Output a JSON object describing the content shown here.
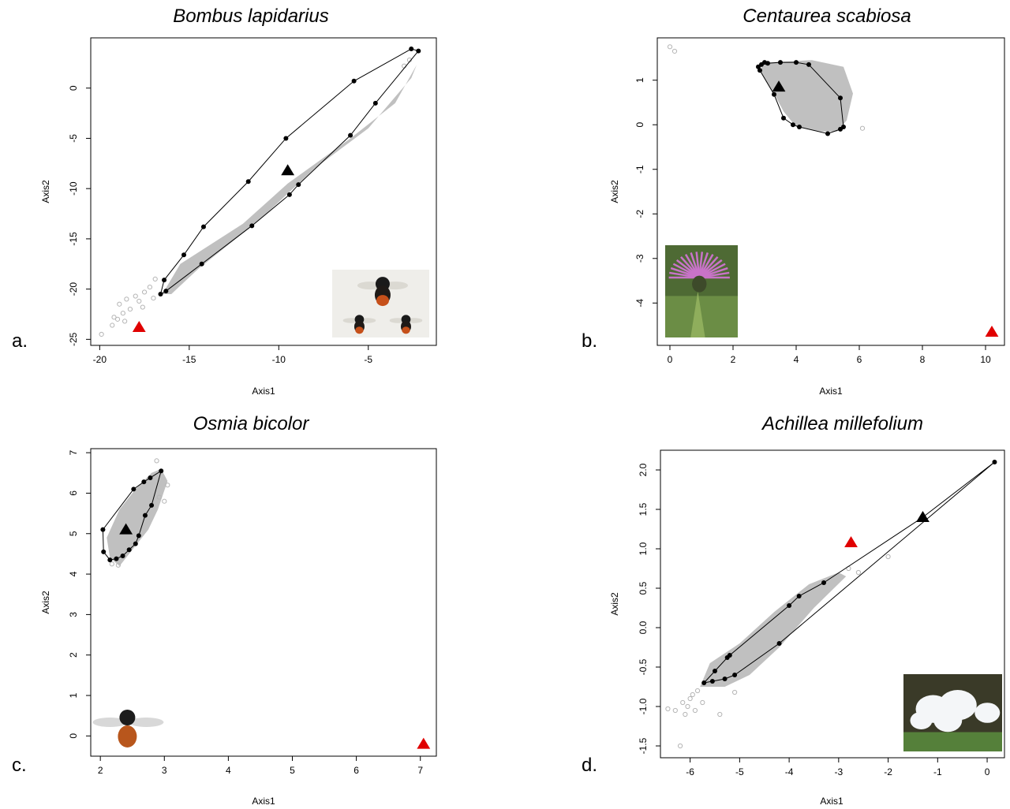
{
  "colors": {
    "cloud": "#c0c0c0",
    "point": "#000000",
    "red_triangle": "#e00000",
    "outlier": "#b5b5b5"
  },
  "chart_data": [
    {
      "type": "scatter",
      "panel": "a.",
      "title": "Bombus lapidarius",
      "xlabel": "Axis1",
      "ylabel": "Axis2",
      "xlim": [
        -20.5,
        -1.2
      ],
      "ylim": [
        -25.6,
        5.0
      ],
      "xticks": [
        -20,
        -15,
        -10,
        -5
      ],
      "yticks": [
        -25,
        -20,
        -15,
        -10,
        -5,
        0
      ],
      "photo": "bumblebee-photo",
      "cloud_polygon": [
        [
          -16.5,
          -20.5
        ],
        [
          -15.5,
          -17.5
        ],
        [
          -12,
          -13.5
        ],
        [
          -9.5,
          -9.5
        ],
        [
          -6,
          -5
        ],
        [
          -3.5,
          -1.5
        ],
        [
          -2.3,
          2.3
        ],
        [
          -2.6,
          1.0
        ],
        [
          -5,
          -4
        ],
        [
          -8,
          -8
        ],
        [
          -11,
          -13
        ],
        [
          -14.5,
          -18
        ],
        [
          -16,
          -20.5
        ]
      ],
      "hull": [
        [
          -16.6,
          -20.5
        ],
        [
          -16.4,
          -19.1
        ],
        [
          -15.3,
          -16.6
        ],
        [
          -14.2,
          -13.8
        ],
        [
          -11.7,
          -9.3
        ],
        [
          -9.6,
          -5.0
        ],
        [
          -5.8,
          0.7
        ],
        [
          -2.6,
          3.9
        ],
        [
          -2.2,
          3.7
        ],
        [
          -4.6,
          -1.5
        ],
        [
          -6.0,
          -4.7
        ],
        [
          -8.9,
          -9.6
        ],
        [
          -9.4,
          -10.6
        ],
        [
          -11.5,
          -13.7
        ],
        [
          -14.3,
          -17.5
        ],
        [
          -16.3,
          -20.2
        ]
      ],
      "centroid": [
        -9.5,
        -8.2
      ],
      "red_marker": [
        -17.8,
        -23.8
      ],
      "outliers": [
        [
          -19.9,
          -24.5
        ],
        [
          -19.3,
          -23.6
        ],
        [
          -19.0,
          -23.0
        ],
        [
          -18.7,
          -22.4
        ],
        [
          -18.9,
          -21.5
        ],
        [
          -18.5,
          -21.0
        ],
        [
          -18.0,
          -20.7
        ],
        [
          -18.3,
          -22.0
        ],
        [
          -17.8,
          -21.2
        ],
        [
          -17.5,
          -20.3
        ],
        [
          -17.2,
          -19.8
        ],
        [
          -16.9,
          -19.0
        ],
        [
          -19.2,
          -22.8
        ],
        [
          -18.6,
          -23.2
        ],
        [
          -17.6,
          -21.8
        ],
        [
          -17.0,
          -20.9
        ],
        [
          -3.0,
          2.2
        ],
        [
          -2.7,
          2.8
        ]
      ]
    },
    {
      "type": "scatter",
      "panel": "b.",
      "title": "Centaurea scabiosa",
      "xlabel": "Axis1",
      "ylabel": "Axis2",
      "xlim": [
        -0.4,
        10.6
      ],
      "ylim": [
        -4.95,
        1.95
      ],
      "xticks": [
        0,
        2,
        4,
        6,
        8,
        10
      ],
      "yticks": [
        -4,
        -3,
        -2,
        -1,
        0,
        1
      ],
      "photo": "knapweed-photo",
      "cloud_polygon": [
        [
          2.9,
          1.3
        ],
        [
          3.1,
          1.4
        ],
        [
          4.5,
          1.45
        ],
        [
          5.5,
          1.3
        ],
        [
          5.8,
          0.7
        ],
        [
          5.6,
          0.1
        ],
        [
          5.3,
          -0.15
        ],
        [
          4.8,
          -0.15
        ],
        [
          4.0,
          -0.05
        ],
        [
          3.6,
          0.3
        ],
        [
          3.3,
          0.7
        ],
        [
          2.9,
          1.15
        ]
      ],
      "hull": [
        [
          2.8,
          1.3
        ],
        [
          2.9,
          1.35
        ],
        [
          3.0,
          1.4
        ],
        [
          3.1,
          1.38
        ],
        [
          3.5,
          1.4
        ],
        [
          4.0,
          1.4
        ],
        [
          4.4,
          1.35
        ],
        [
          5.4,
          0.6
        ],
        [
          5.5,
          -0.05
        ],
        [
          5.4,
          -0.1
        ],
        [
          5.0,
          -0.2
        ],
        [
          4.1,
          -0.05
        ],
        [
          3.9,
          0.0
        ],
        [
          3.6,
          0.15
        ],
        [
          3.3,
          0.68
        ],
        [
          2.85,
          1.22
        ]
      ],
      "centroid": [
        3.45,
        0.85
      ],
      "red_marker": [
        10.2,
        -4.65
      ],
      "outliers": [
        [
          0.0,
          1.75
        ],
        [
          0.15,
          1.65
        ],
        [
          6.1,
          -0.08
        ]
      ]
    },
    {
      "type": "scatter",
      "panel": "c.",
      "title": "Osmia bicolor",
      "xlabel": "Axis1",
      "ylabel": "Axis2",
      "xlim": [
        1.85,
        7.25
      ],
      "ylim": [
        -0.5,
        7.1
      ],
      "xticks": [
        2,
        3,
        4,
        5,
        6,
        7
      ],
      "yticks": [
        0,
        1,
        2,
        3,
        4,
        5,
        6,
        7
      ],
      "photo": "osmia-bee-photo",
      "cloud_polygon": [
        [
          2.15,
          4.4
        ],
        [
          2.1,
          4.9
        ],
        [
          2.3,
          5.6
        ],
        [
          2.55,
          6.1
        ],
        [
          2.8,
          6.5
        ],
        [
          2.95,
          6.6
        ],
        [
          3.05,
          6.3
        ],
        [
          2.9,
          5.6
        ],
        [
          2.75,
          5.1
        ],
        [
          2.5,
          4.6
        ],
        [
          2.3,
          4.2
        ]
      ],
      "hull": [
        [
          2.04,
          5.1
        ],
        [
          2.05,
          4.55
        ],
        [
          2.15,
          4.35
        ],
        [
          2.25,
          4.38
        ],
        [
          2.35,
          4.45
        ],
        [
          2.45,
          4.6
        ],
        [
          2.55,
          4.75
        ],
        [
          2.6,
          4.95
        ],
        [
          2.7,
          5.45
        ],
        [
          2.8,
          5.7
        ],
        [
          2.95,
          6.55
        ],
        [
          2.78,
          6.38
        ],
        [
          2.68,
          6.28
        ],
        [
          2.52,
          6.1
        ]
      ],
      "centroid": [
        2.4,
        5.1
      ],
      "red_marker": [
        7.05,
        -0.2
      ],
      "outliers": [
        [
          2.88,
          6.8
        ],
        [
          3.05,
          6.2
        ],
        [
          3.0,
          5.8
        ],
        [
          2.18,
          4.25
        ],
        [
          2.28,
          4.22
        ],
        [
          2.92,
          5.9
        ]
      ]
    },
    {
      "type": "scatter",
      "panel": "d.",
      "title": "Achillea millefolium",
      "xlabel": "Axis1",
      "ylabel": "Axis2",
      "xlim": [
        -6.6,
        0.35
      ],
      "ylim": [
        -1.65,
        2.25
      ],
      "xticks": [
        -6,
        -5,
        -4,
        -3,
        -2,
        -1,
        0
      ],
      "yticks": [
        -1.5,
        -1.0,
        -0.5,
        0.0,
        0.5,
        1.0,
        1.5,
        2.0
      ],
      "photo": "yarrow-photo",
      "cloud_polygon": [
        [
          -5.8,
          -0.75
        ],
        [
          -5.6,
          -0.45
        ],
        [
          -5.0,
          -0.2
        ],
        [
          -4.3,
          0.2
        ],
        [
          -3.6,
          0.55
        ],
        [
          -3.0,
          0.7
        ],
        [
          -2.85,
          0.65
        ],
        [
          -3.5,
          0.25
        ],
        [
          -4.2,
          -0.25
        ],
        [
          -4.8,
          -0.6
        ],
        [
          -5.3,
          -0.75
        ]
      ],
      "hull": [
        [
          -5.72,
          -0.7
        ],
        [
          -5.5,
          -0.55
        ],
        [
          -5.25,
          -0.38
        ],
        [
          -5.2,
          -0.35
        ],
        [
          -4.0,
          0.28
        ],
        [
          -3.8,
          0.4
        ],
        [
          -3.3,
          0.57
        ],
        [
          -1.3,
          1.4
        ],
        [
          0.15,
          2.1
        ],
        [
          -4.2,
          -0.2
        ],
        [
          -5.1,
          -0.6
        ],
        [
          -5.3,
          -0.65
        ],
        [
          -5.55,
          -0.68
        ]
      ],
      "centroid": [
        -1.3,
        1.4
      ],
      "red_marker": [
        -2.75,
        1.08
      ],
      "outliers": [
        [
          -6.3,
          -1.05
        ],
        [
          -6.15,
          -0.95
        ],
        [
          -6.05,
          -1.0
        ],
        [
          -6.0,
          -0.9
        ],
        [
          -5.95,
          -0.85
        ],
        [
          -5.9,
          -1.05
        ],
        [
          -6.1,
          -1.1
        ],
        [
          -5.85,
          -0.8
        ],
        [
          -6.2,
          -1.5
        ],
        [
          -5.4,
          -1.1
        ],
        [
          -5.1,
          -0.82
        ],
        [
          -2.0,
          0.9
        ],
        [
          -2.6,
          0.7
        ],
        [
          -2.8,
          0.75
        ],
        [
          -6.45,
          -1.03
        ],
        [
          -5.75,
          -0.95
        ]
      ]
    }
  ]
}
